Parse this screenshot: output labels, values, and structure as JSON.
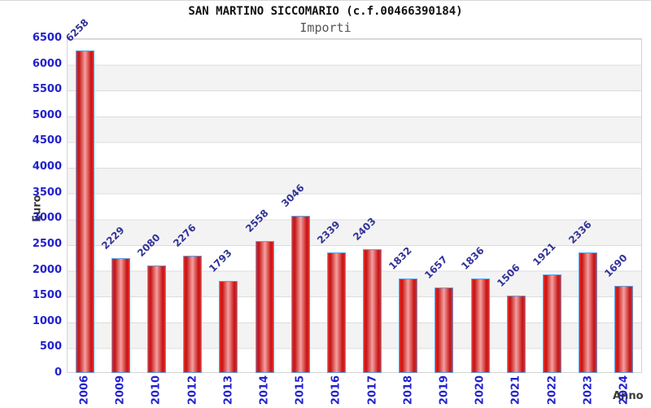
{
  "header": {
    "title": "SAN MARTINO SICCOMARIO (c.f.00466390184)",
    "subtitle": "Importi"
  },
  "chart_data": {
    "type": "bar",
    "title": "SAN MARTINO SICCOMARIO (c.f.00466390184)",
    "subtitle": "Importi",
    "xlabel": "Anno",
    "ylabel": "Euro",
    "categories": [
      "2006",
      "2009",
      "2010",
      "2012",
      "2013",
      "2014",
      "2015",
      "2016",
      "2017",
      "2018",
      "2019",
      "2020",
      "2021",
      "2022",
      "2023",
      "2024"
    ],
    "values": [
      6258,
      2229,
      2080,
      2276,
      1793,
      2558,
      3046,
      2339,
      2403,
      1832,
      1657,
      1836,
      1506,
      1921,
      2336,
      1690
    ],
    "ylim": [
      0,
      6500
    ],
    "ytick_step": 500,
    "yticks": [
      0,
      500,
      1000,
      1500,
      2000,
      2500,
      3000,
      3500,
      4000,
      4500,
      5000,
      5500,
      6000,
      6500
    ],
    "grid": true,
    "legend": false,
    "value_labels_rotation_deg": -45,
    "x_labels_rotation_deg": -90,
    "colors": {
      "bar_edge": "#c51212",
      "bar_center": "#f5a0a0",
      "bar_outline": "#5a9fe0",
      "value_label": "#333399",
      "tick_label": "#2222cc",
      "axis_title": "#3a3a3a",
      "stripe": "#f3f3f3",
      "gridline": "#dcdcdc",
      "title": "#111111",
      "subtitle": "#555555"
    }
  }
}
